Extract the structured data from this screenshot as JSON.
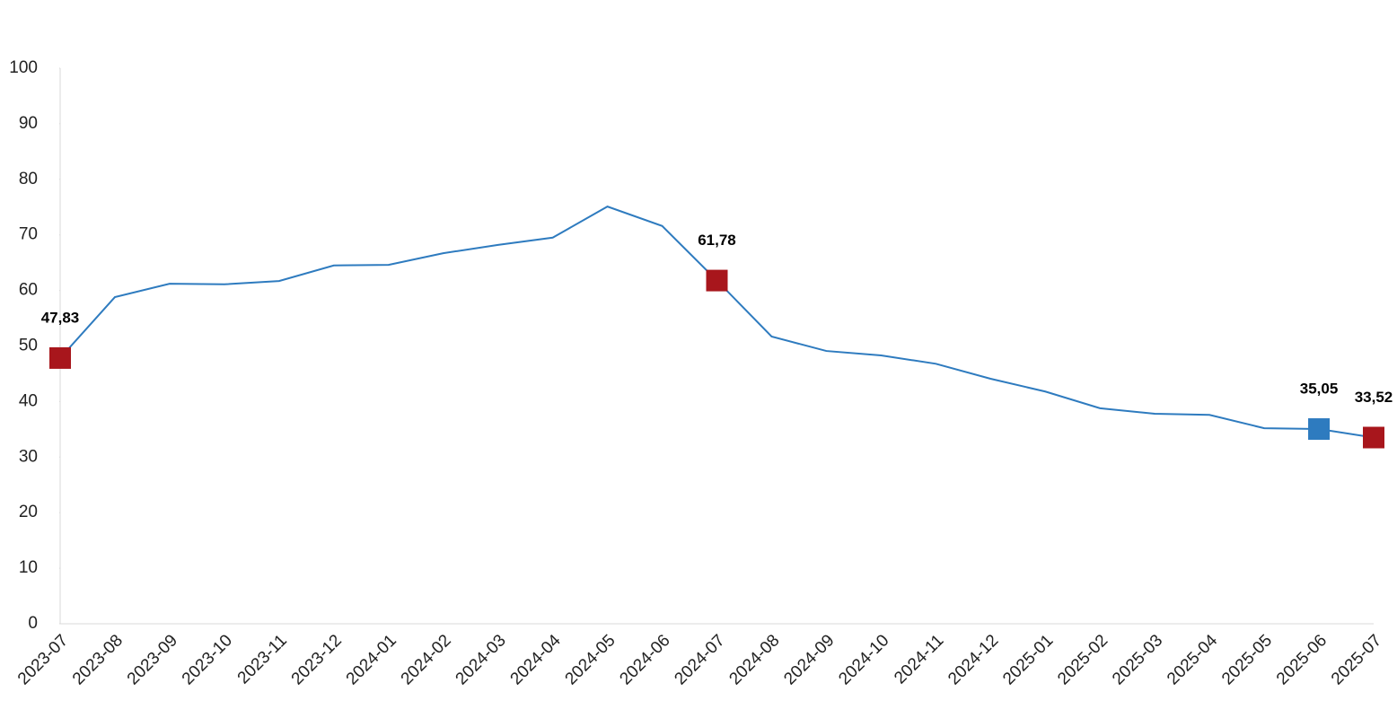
{
  "chart_data": {
    "type": "line",
    "categories": [
      "2023-07",
      "2023-08",
      "2023-09",
      "2023-10",
      "2023-11",
      "2023-12",
      "2024-01",
      "2024-02",
      "2024-03",
      "2024-04",
      "2024-05",
      "2024-06",
      "2024-07",
      "2024-08",
      "2024-09",
      "2024-10",
      "2024-11",
      "2024-12",
      "2025-01",
      "2025-02",
      "2025-03",
      "2025-04",
      "2025-05",
      "2025-06",
      "2025-07"
    ],
    "series": [
      {
        "color": "#2e7bbf",
        "values": [
          47.83,
          58.8,
          61.2,
          61.1,
          61.7,
          64.5,
          64.6,
          66.7,
          68.2,
          69.5,
          75.1,
          71.6,
          61.78,
          51.7,
          49.1,
          48.3,
          46.8,
          44.1,
          41.8,
          38.8,
          37.8,
          37.6,
          35.2,
          35.05,
          33.52
        ],
        "value_labels": [
          "47,83",
          null,
          null,
          null,
          null,
          null,
          null,
          null,
          null,
          null,
          null,
          null,
          "61,78",
          null,
          null,
          null,
          null,
          null,
          null,
          null,
          null,
          null,
          null,
          "35,05",
          "33,52"
        ],
        "marker_colors": [
          "#a8161c",
          null,
          null,
          null,
          null,
          null,
          null,
          null,
          null,
          null,
          null,
          null,
          "#a8161c",
          null,
          null,
          null,
          null,
          null,
          null,
          null,
          null,
          null,
          null,
          "#2e7bbf",
          "#a8161c"
        ]
      }
    ],
    "ylim": [
      0,
      100
    ],
    "yticks": [
      0,
      10,
      20,
      30,
      40,
      50,
      60,
      70,
      80,
      90,
      100
    ],
    "axis_color": "#d9d9d9"
  }
}
